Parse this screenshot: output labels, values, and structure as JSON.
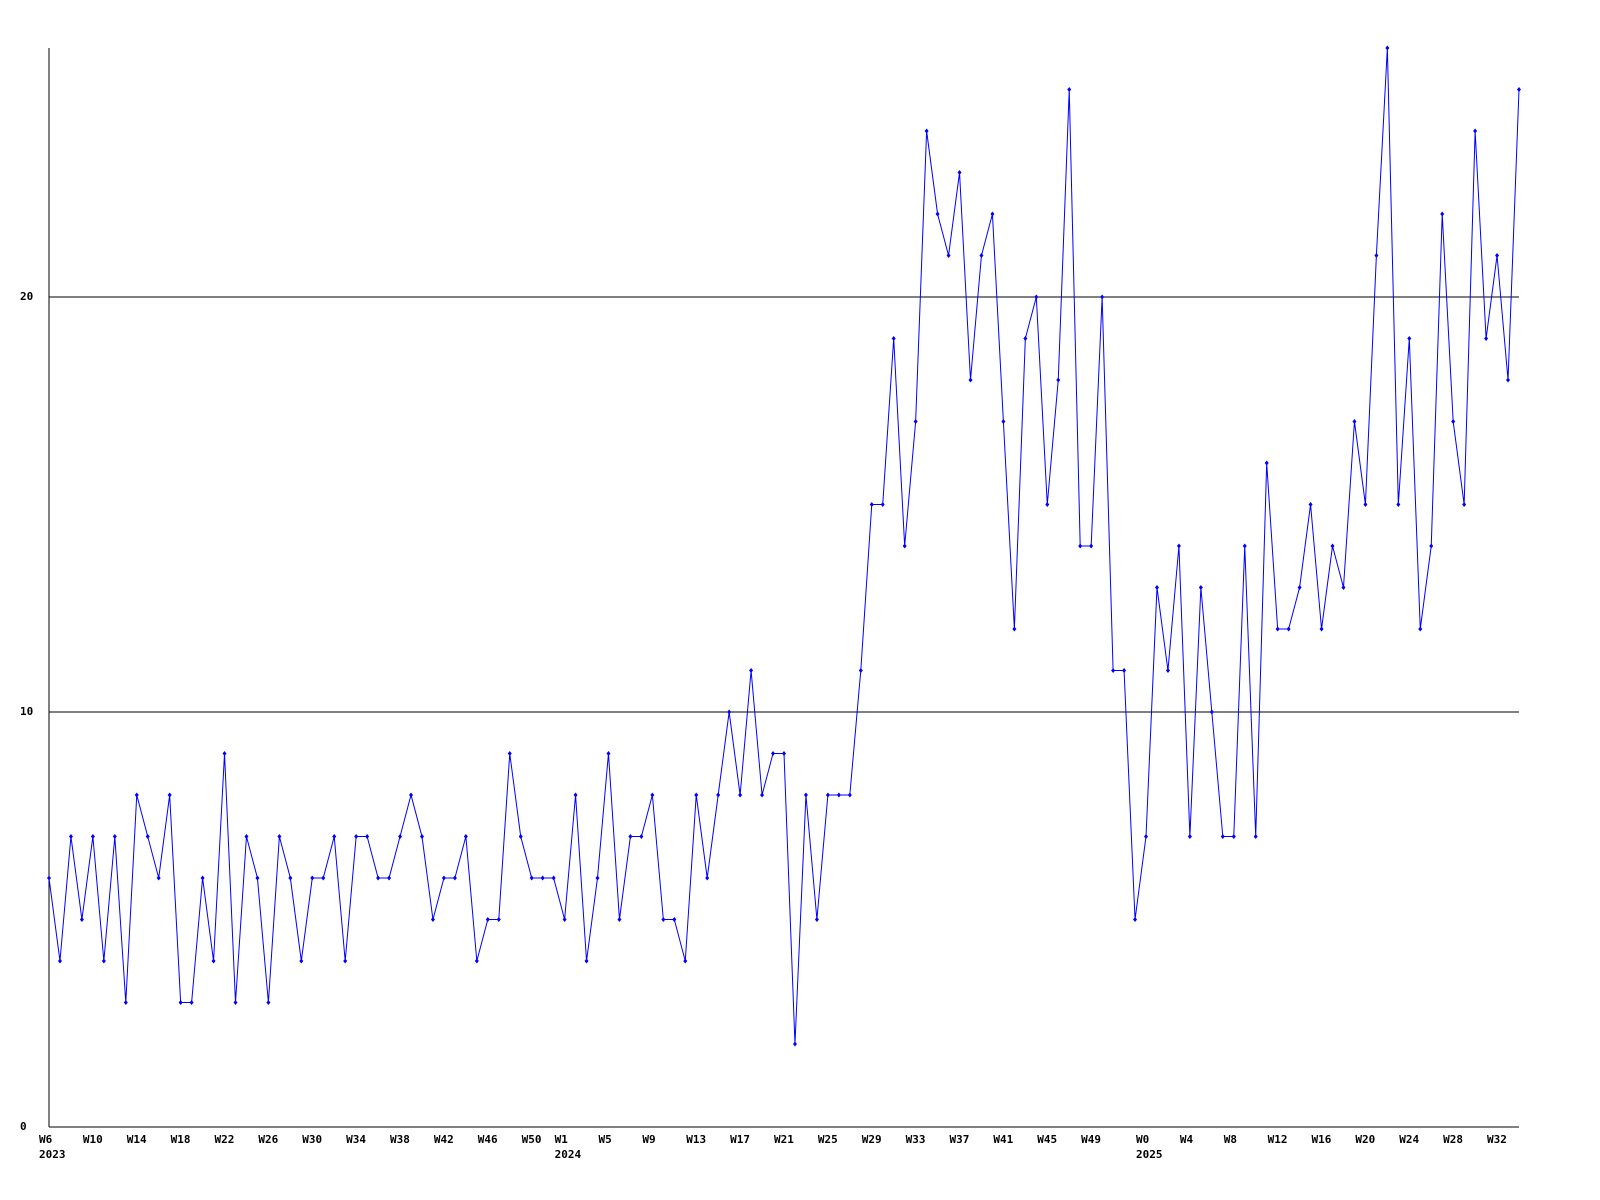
{
  "chart_data": {
    "type": "line",
    "categories": [
      "W6",
      null,
      null,
      null,
      "W10",
      null,
      null,
      null,
      "W14",
      null,
      null,
      null,
      "W18",
      null,
      null,
      null,
      "W22",
      null,
      null,
      null,
      "W26",
      null,
      null,
      null,
      "W30",
      null,
      null,
      null,
      "W34",
      null,
      null,
      null,
      "W38",
      null,
      null,
      null,
      "W42",
      null,
      null,
      null,
      "W46",
      null,
      null,
      null,
      "W50",
      null,
      null,
      "W1",
      null,
      null,
      null,
      "W5",
      null,
      null,
      null,
      "W9",
      null,
      null,
      null,
      "W13",
      null,
      null,
      null,
      "W17",
      null,
      null,
      null,
      "W21",
      null,
      null,
      null,
      "W25",
      null,
      null,
      null,
      "W29",
      null,
      null,
      null,
      "W33",
      null,
      null,
      null,
      "W37",
      null,
      null,
      null,
      "W41",
      null,
      null,
      null,
      "W45",
      null,
      null,
      null,
      "W49",
      null,
      null,
      null,
      null,
      "W0",
      null,
      null,
      null,
      "W4",
      null,
      null,
      null,
      "W8",
      null,
      null,
      null,
      "W12",
      null,
      null,
      null,
      "W16",
      null,
      null,
      null,
      "W20",
      null,
      null,
      null,
      "W24",
      null,
      null,
      null,
      "W28",
      null,
      null,
      null,
      "W32",
      null,
      null
    ],
    "year_labels": [
      {
        "category": 0,
        "label": "2023"
      },
      {
        "category": 47,
        "label": "2024"
      },
      {
        "category": 100,
        "label": "2025"
      }
    ],
    "series": [
      {
        "color": "#0000ff",
        "values": [
          6,
          4,
          7,
          5,
          7,
          4,
          7,
          3,
          8,
          7,
          6,
          8,
          3,
          3,
          6,
          4,
          9,
          3,
          7,
          6,
          3,
          7,
          6,
          4,
          6,
          6,
          7,
          4,
          7,
          7,
          6,
          6,
          7,
          8,
          7,
          5,
          6,
          6,
          7,
          4,
          5,
          5,
          9,
          7,
          6,
          6,
          6,
          5,
          8,
          4,
          6,
          9,
          5,
          7,
          7,
          8,
          5,
          5,
          4,
          8,
          6,
          8,
          10,
          8,
          11,
          8,
          9,
          9,
          2,
          8,
          5,
          8,
          8,
          8,
          11,
          15,
          15,
          19,
          14,
          17,
          24,
          22,
          21,
          23,
          18,
          21,
          22,
          17,
          12,
          19,
          20,
          15,
          18,
          25,
          14,
          14,
          20,
          11,
          11,
          5,
          7,
          13,
          11,
          14,
          7,
          13,
          10,
          7,
          7,
          14,
          7,
          16,
          12,
          12,
          13,
          15,
          12,
          14,
          13,
          17,
          15,
          21,
          26,
          15,
          19,
          12,
          14,
          22,
          17,
          15,
          24,
          19,
          21,
          18,
          25
        ]
      }
    ],
    "ylim": [
      0,
      26
    ],
    "yticks": [
      0,
      10,
      20
    ],
    "grid": true
  }
}
